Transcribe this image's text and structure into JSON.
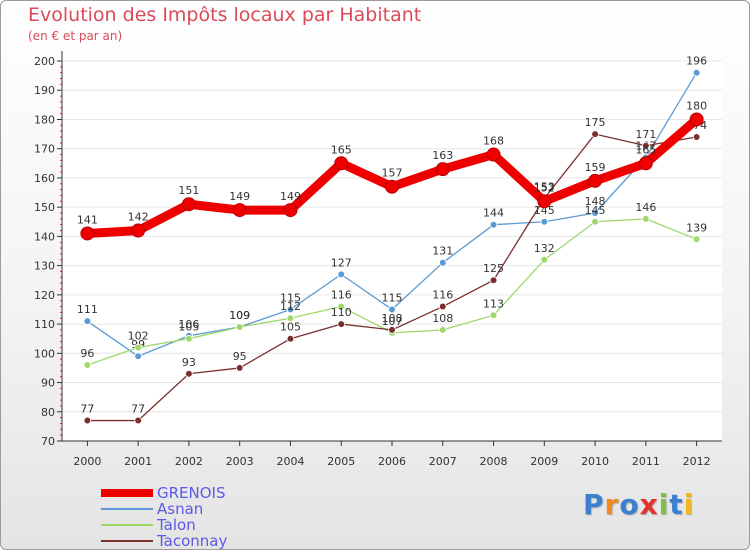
{
  "chart_data": {
    "type": "line",
    "title": "Evolution des Impôts locaux par Habitant",
    "subtitle": "(en € et par an)",
    "xlabel": "",
    "ylabel": "",
    "ylim": [
      70,
      200
    ],
    "yticks": [
      70,
      80,
      90,
      100,
      110,
      120,
      130,
      140,
      150,
      160,
      170,
      180,
      190,
      200
    ],
    "grid": true,
    "legend_position": "bottom-left",
    "categories": [
      "2000",
      "2001",
      "2002",
      "2003",
      "2004",
      "2005",
      "2006",
      "2007",
      "2008",
      "2009",
      "2010",
      "2011",
      "2012"
    ],
    "series": [
      {
        "name": "Asnan",
        "color": "#5b9bd5",
        "values": [
          111,
          99,
          106,
          109,
          115,
          127,
          115,
          131,
          144,
          145,
          148,
          167,
          196
        ],
        "labels": [
          "111",
          "99",
          "106",
          "109",
          "115",
          "127",
          "115",
          "131",
          "144",
          "145",
          "148",
          "167",
          "196"
        ]
      },
      {
        "name": "Talon",
        "color": "#9ed86a",
        "values": [
          96,
          102,
          105,
          109,
          112,
          116,
          107,
          108,
          113,
          132,
          145,
          146,
          139
        ],
        "labels": [
          "96",
          "102",
          "105",
          "109",
          "112",
          "116",
          "107",
          "108",
          "113",
          "132",
          "145",
          "146",
          "139"
        ]
      },
      {
        "name": "Taconnay",
        "color": "#7a2e2e",
        "values": [
          77,
          77,
          93,
          95,
          105,
          110,
          108,
          116,
          125,
          153,
          175,
          171,
          174
        ],
        "labels": [
          "77",
          "77",
          "93",
          "95",
          "105",
          "110",
          "108",
          "116",
          "125",
          "153",
          "175",
          "171",
          "174"
        ]
      },
      {
        "name": "GRENOIS",
        "color": "#ee0000",
        "values": [
          141,
          142,
          151,
          149,
          149,
          165,
          157,
          163,
          168,
          152,
          159,
          165,
          180
        ],
        "labels": [
          "141",
          "142",
          "151",
          "149",
          "149",
          "165",
          "157",
          "163",
          "168",
          "152",
          "159",
          "165",
          "180"
        ]
      }
    ],
    "legend": [
      "GRENOIS",
      "Asnan",
      "Talon",
      "Taconnay"
    ]
  },
  "logo": {
    "text": "Proxiti",
    "letters": [
      "P",
      "r",
      "o",
      "x",
      "i",
      "t",
      "i"
    ],
    "colors": [
      "#3a7fd0",
      "#f08a1c",
      "#3a7fd0",
      "#e4322b",
      "#7cc242",
      "#3a7fd0",
      "#f0b81c"
    ]
  }
}
